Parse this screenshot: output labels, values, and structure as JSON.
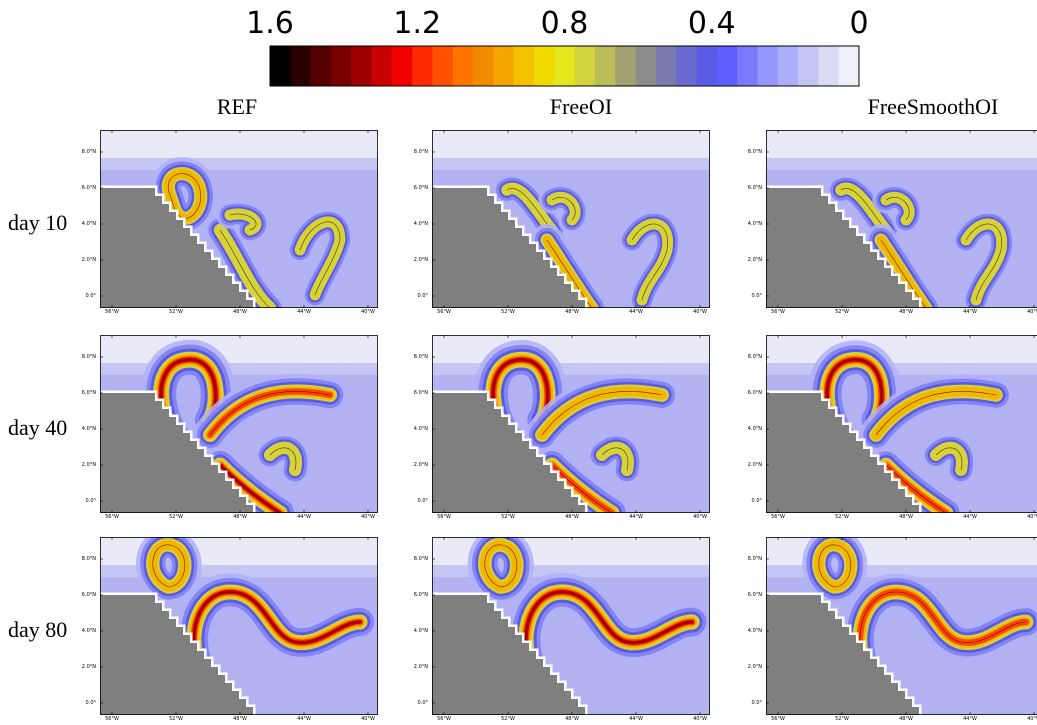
{
  "chart_data": {
    "type": "heatmap",
    "colorbar": {
      "tick_labels": [
        "1.6",
        "1.2",
        "0.8",
        "0.4",
        "0"
      ],
      "range": [
        1.6,
        0
      ],
      "colors": [
        "#000000",
        "#2a0000",
        "#540000",
        "#7a0000",
        "#9e0000",
        "#c80000",
        "#f00000",
        "#ff2a00",
        "#ff5000",
        "#ff7400",
        "#f28a00",
        "#f5a500",
        "#f5c200",
        "#f0dc00",
        "#e6e61c",
        "#d2d23c",
        "#bcbc58",
        "#a0a070",
        "#8c8c8c",
        "#7a7aae",
        "#6a6ad0",
        "#5a5ae6",
        "#5f5fff",
        "#7a7aff",
        "#9696ff",
        "#adadfa",
        "#c4c4f5",
        "#dadaf5",
        "#efeff7"
      ]
    },
    "columns": [
      "REF",
      "FreeOI",
      "FreeSmoothOI"
    ],
    "rows": [
      "day 10",
      "day 40",
      "day 80"
    ],
    "x_tick_labels": [
      "56°W",
      "52°W",
      "48°W",
      "44°W",
      "40°W"
    ],
    "y_tick_labels": [
      "8.0°N",
      "6.0°N",
      "4.0°N",
      "2.0°N",
      "0.0°"
    ],
    "colors": {
      "land": "#7f7f7f",
      "background": "#ffffff"
    }
  }
}
